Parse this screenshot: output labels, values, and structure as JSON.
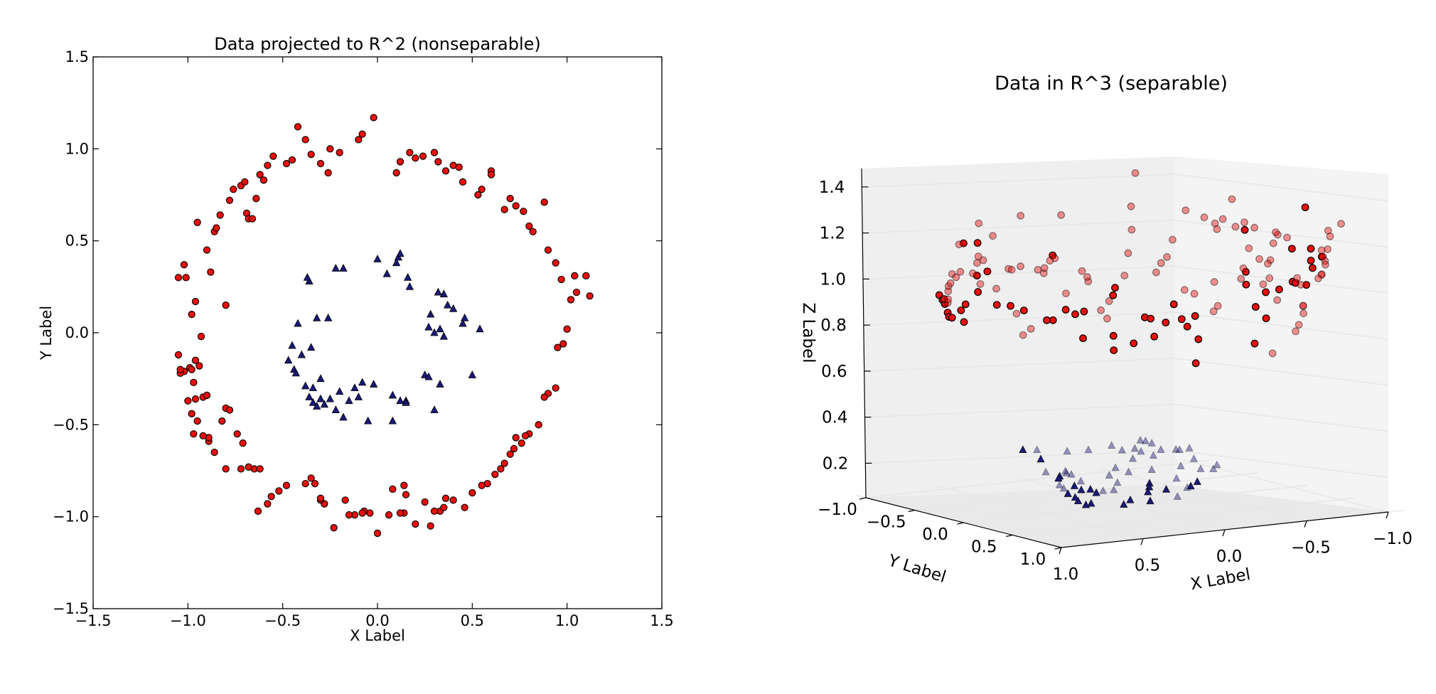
{
  "chart_data": [
    {
      "type": "scatter",
      "title": "Data projected to R^2 (nonseparable)",
      "xlabel": "X Label",
      "ylabel": "Y Label",
      "xlim": [
        -1.5,
        1.5
      ],
      "ylim": [
        -1.5,
        1.5
      ],
      "xticks": [
        "−1.5",
        "−1.0",
        "−0.5",
        "0.0",
        "0.5",
        "1.0",
        "1.5"
      ],
      "yticks": [
        "−1.5",
        "−1.0",
        "−0.5",
        "0.0",
        "0.5",
        "1.0",
        "1.5"
      ],
      "grid": false,
      "colors": {
        "outer": "#e8100d",
        "inner": "#1a1a78",
        "edge": "#000000"
      },
      "series": [
        {
          "marker": "circle",
          "x": [
            -1.05,
            -1.02,
            -1.01,
            -1.05,
            -0.99,
            -0.98,
            -0.96,
            -1.02,
            -1.04,
            -1.04,
            -0.98,
            -0.96,
            -0.95,
            -0.94,
            -0.97,
            -0.93,
            -0.92,
            -0.9,
            -0.89,
            -0.9,
            -0.88,
            -0.86,
            -0.85,
            -0.83,
            -0.8,
            -0.8,
            -0.78,
            -0.76,
            -0.72,
            -0.7,
            -0.69,
            -0.68,
            -0.66,
            -0.64,
            -0.62,
            -0.6,
            -0.58,
            -0.55,
            -0.48,
            -0.45,
            -0.42,
            -0.38,
            -0.35,
            -0.3,
            -0.26,
            -0.25,
            -0.2,
            -0.1,
            -0.08,
            -0.02,
            0.1,
            0.12,
            0.17,
            0.2,
            0.24,
            0.3,
            0.32,
            0.36,
            0.4,
            0.43,
            0.45,
            0.53,
            0.55,
            0.6,
            0.6,
            0.67,
            0.7,
            0.73,
            0.77,
            0.8,
            0.82,
            0.88,
            0.9,
            0.94,
            0.97,
            1.02,
            1.04,
            1.05,
            1.1,
            1.12,
            1.0,
            0.98,
            0.95,
            0.94,
            0.9,
            0.88,
            0.85,
            0.8,
            0.78,
            0.76,
            0.73,
            0.72,
            0.7,
            0.67,
            0.65,
            0.62,
            0.58,
            0.55,
            0.5,
            0.46,
            0.4,
            0.36,
            0.33,
            0.28,
            0.2,
            0.14,
            0.12,
            0.08,
            0.0,
            -0.04,
            -0.07,
            -0.12,
            -0.15,
            -0.23,
            -0.28,
            -0.3,
            -0.33,
            -0.38,
            -0.52,
            -0.56,
            -0.58,
            -0.63,
            -0.65,
            -0.72,
            -0.8,
            -0.86,
            -0.89,
            -0.92,
            -0.95,
            -0.97,
            -0.98,
            -1.0,
            -0.96,
            -0.78,
            -0.82,
            -0.74,
            -0.71,
            -0.68,
            -0.62,
            -0.48,
            -0.35,
            -0.3,
            -0.17,
            -0.08,
            0.06,
            0.14,
            0.15,
            0.3,
            0.25,
            0.35
          ],
          "y": [
            0.3,
            0.37,
            0.3,
            -0.12,
            -0.19,
            -0.2,
            -0.15,
            -0.21,
            -0.22,
            -0.2,
            0.1,
            0.17,
            0.6,
            -0.18,
            -0.27,
            -0.02,
            -0.35,
            -0.34,
            -0.59,
            0.45,
            0.33,
            0.55,
            0.57,
            0.64,
            0.15,
            -0.41,
            0.72,
            0.78,
            0.8,
            0.82,
            0.65,
            0.62,
            0.62,
            0.73,
            0.86,
            0.83,
            0.91,
            0.96,
            0.92,
            0.94,
            1.12,
            1.05,
            0.97,
            0.92,
            0.87,
            1.0,
            0.98,
            1.05,
            1.08,
            1.17,
            0.87,
            0.93,
            0.98,
            0.95,
            0.96,
            0.98,
            0.93,
            0.88,
            0.91,
            0.9,
            0.82,
            0.75,
            0.78,
            0.88,
            0.86,
            0.67,
            0.73,
            0.69,
            0.66,
            0.58,
            0.55,
            0.71,
            0.45,
            0.38,
            0.29,
            0.18,
            0.31,
            0.22,
            0.31,
            0.2,
            0.02,
            -0.06,
            -0.08,
            -0.3,
            -0.33,
            -0.35,
            -0.5,
            -0.55,
            -0.56,
            -0.6,
            -0.57,
            -0.63,
            -0.66,
            -0.71,
            -0.74,
            -0.77,
            -0.82,
            -0.83,
            -0.87,
            -0.95,
            -0.91,
            -0.9,
            -0.97,
            -1.05,
            -1.04,
            -0.98,
            -0.98,
            -0.85,
            -1.09,
            -0.98,
            -0.97,
            -0.99,
            -0.99,
            -1.06,
            -0.93,
            -0.91,
            -0.82,
            -0.82,
            -0.86,
            -0.89,
            -0.93,
            -0.97,
            -0.74,
            -0.74,
            -0.74,
            -0.65,
            -0.57,
            -0.56,
            -0.48,
            -0.55,
            -0.44,
            -0.37,
            -0.36,
            -0.42,
            -0.48,
            -0.55,
            -0.6,
            -0.73,
            -0.74,
            -0.83,
            -0.79,
            -0.9,
            -0.91,
            -0.98,
            -0.99,
            -0.83,
            -0.88,
            -0.97,
            -0.92,
            -0.95
          ]
        },
        {
          "marker": "triangle",
          "x": [
            -0.47,
            -0.45,
            -0.44,
            -0.43,
            -0.42,
            -0.4,
            -0.38,
            -0.36,
            -0.34,
            -0.32,
            -0.3,
            -0.28,
            -0.26,
            -0.25,
            -0.22,
            -0.2,
            -0.18,
            -0.15,
            -0.12,
            -0.1,
            -0.08,
            -0.05,
            0.0,
            0.05,
            0.08,
            0.1,
            0.11,
            0.12,
            0.15,
            0.16,
            0.17,
            0.25,
            0.27,
            0.28,
            0.3,
            0.3,
            0.32,
            0.33,
            0.33,
            0.35,
            0.35,
            0.37,
            0.4,
            0.45,
            0.5,
            0.54,
            -0.36,
            -0.34,
            -0.32,
            -0.3,
            -0.37,
            -0.22,
            -0.18,
            -0.35,
            0.08,
            0.12,
            0.15,
            -0.02,
            0.46,
            0.27
          ],
          "y": [
            -0.15,
            -0.07,
            -0.2,
            -0.22,
            0.05,
            -0.12,
            -0.29,
            0.28,
            -0.3,
            0.08,
            -0.25,
            -0.39,
            0.08,
            -0.36,
            0.35,
            -0.32,
            0.35,
            -0.37,
            -0.3,
            -0.35,
            -0.27,
            -0.48,
            0.4,
            0.32,
            -0.34,
            0.38,
            0.41,
            0.43,
            -0.37,
            0.3,
            0.25,
            -0.23,
            -0.24,
            0.1,
            0.0,
            -0.42,
            0.22,
            0.02,
            -0.28,
            -0.02,
            0.21,
            0.15,
            0.13,
            0.05,
            -0.23,
            0.02,
            -0.35,
            -0.38,
            -0.4,
            -0.36,
            0.3,
            -0.42,
            -0.46,
            -0.08,
            -0.48,
            -0.37,
            -0.38,
            -0.28,
            0.08,
            0.03
          ]
        }
      ]
    },
    {
      "type": "scatter3d",
      "title": "Data in R^3 (separable)",
      "xlabel": "X Label",
      "ylabel": "Y Label",
      "zlabel": "Z Label",
      "xticks": [
        "−1.0",
        "−0.5",
        "0.0",
        "0.5",
        "1.0"
      ],
      "yticks": [
        "−1.0",
        "−0.5",
        "0.0",
        "0.5",
        "1.0"
      ],
      "zticks": [
        "0.2",
        "0.4",
        "0.6",
        "0.8",
        "1.0",
        "1.2",
        "1.4"
      ],
      "zlim": [
        0.05,
        1.48
      ],
      "colors": {
        "outer": "#e8100d",
        "inner": "#1a1a78",
        "pane": "#f2f2f2",
        "grid": "#e6e6e6"
      },
      "series": [
        {
          "marker": "circle",
          "z_from": "x^2 + y^2 of the outer points",
          "x_from_left_series": "x",
          "y_from_left_series": "y"
        },
        {
          "marker": "triangle",
          "z_from": "x^2 + y^2 of the inner points",
          "x_from_left_series": "x",
          "y_from_left_series": "y"
        }
      ]
    }
  ]
}
